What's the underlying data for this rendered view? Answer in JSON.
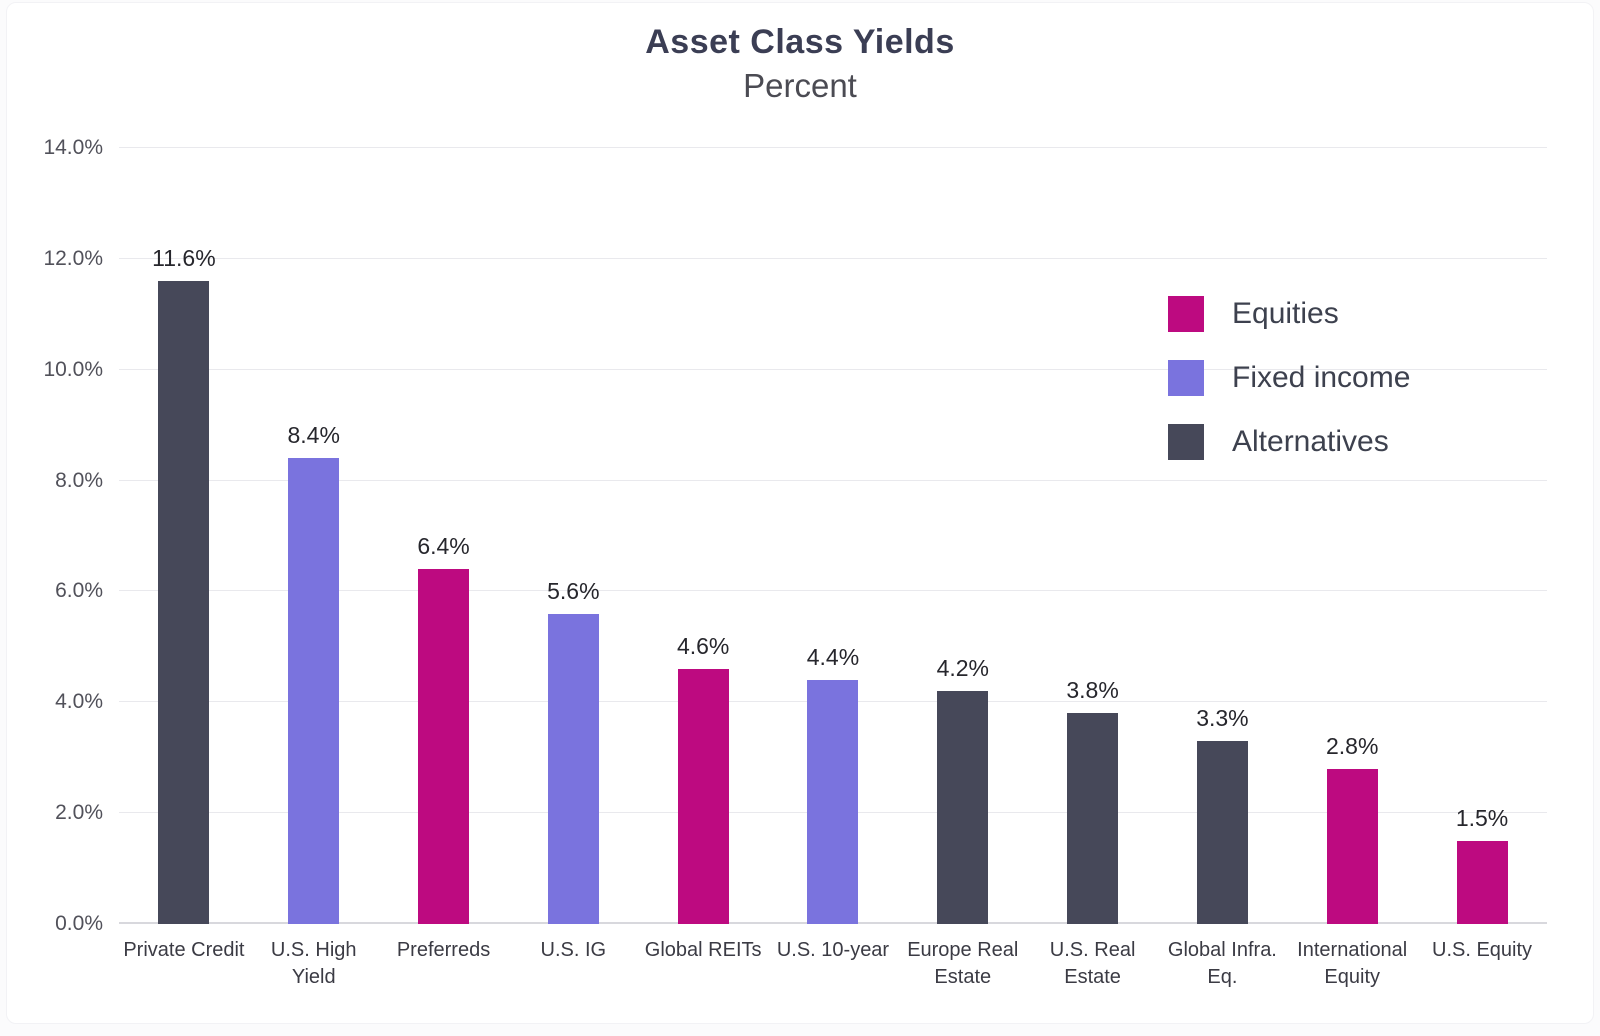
{
  "chart_data": {
    "type": "bar",
    "title": "Asset Class Yields",
    "subtitle": "Percent",
    "categories": [
      "Private Credit",
      "U.S. High Yield",
      "Preferreds",
      "U.S. IG",
      "Global REITs",
      "U.S. 10-year",
      "Europe Real Estate",
      "U.S. Real Estate",
      "Global Infra. Eq.",
      "International Equity",
      "U.S. Equity"
    ],
    "category_label_lines": [
      [
        "Private Credit"
      ],
      [
        "U.S. High",
        "Yield"
      ],
      [
        "Preferreds"
      ],
      [
        "U.S. IG"
      ],
      [
        "Global REITs"
      ],
      [
        "U.S. 10-year"
      ],
      [
        "Europe Real",
        "Estate"
      ],
      [
        "U.S. Real",
        "Estate"
      ],
      [
        "Global Infra.",
        "Eq."
      ],
      [
        "International",
        "Equity"
      ],
      [
        "U.S. Equity"
      ]
    ],
    "values": [
      11.6,
      8.4,
      6.4,
      5.6,
      4.6,
      4.4,
      4.2,
      3.8,
      3.3,
      2.8,
      1.5
    ],
    "value_labels": [
      "11.6%",
      "8.4%",
      "6.4%",
      "5.6%",
      "4.6%",
      "4.4%",
      "4.2%",
      "3.8%",
      "3.3%",
      "2.8%",
      "1.5%"
    ],
    "groups": [
      "Alternatives",
      "Fixed income",
      "Equities",
      "Fixed income",
      "Equities",
      "Fixed income",
      "Alternatives",
      "Alternatives",
      "Alternatives",
      "Equities",
      "Equities"
    ],
    "colors": {
      "Equities": "#bd0a80",
      "Fixed income": "#7a73de",
      "Alternatives": "#464859"
    },
    "ylim": [
      0,
      14
    ],
    "ytick_step": 2,
    "ytick_labels": [
      "0.0%",
      "2.0%",
      "4.0%",
      "6.0%",
      "8.0%",
      "10.0%",
      "12.0%",
      "14.0%"
    ],
    "grid": true,
    "legend": {
      "position": "upper-right",
      "entries": [
        {
          "label": "Equities",
          "color": "#bd0a80"
        },
        {
          "label": "Fixed income",
          "color": "#7a73de"
        },
        {
          "label": "Alternatives",
          "color": "#464859"
        }
      ]
    }
  }
}
